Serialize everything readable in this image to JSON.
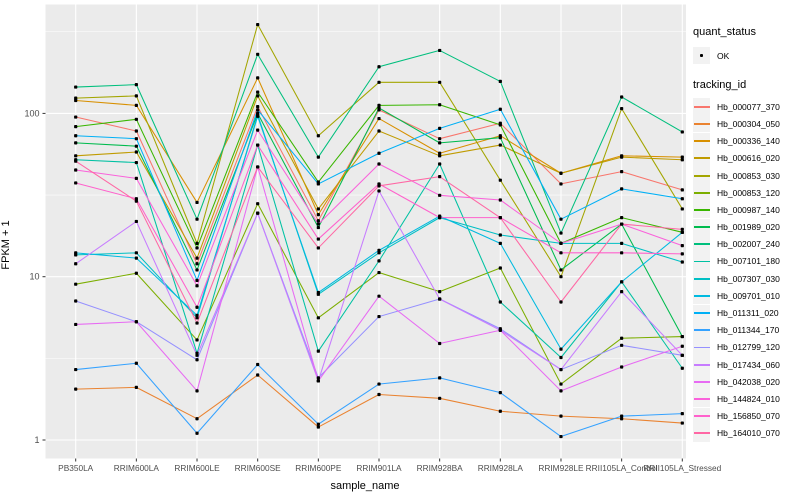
{
  "chart_data": {
    "type": "line",
    "title": "",
    "xlabel": "sample_name",
    "ylabel": "FPKM + 1",
    "yscale": "log10",
    "ytick_labels": [
      "100",
      "10",
      "1"
    ],
    "yticks": [
      100,
      10,
      1
    ],
    "yminor": [
      316.23,
      31.623,
      3.1623
    ],
    "ylim": [
      1,
      400
    ],
    "grid": "white-on-gray",
    "panel_bg": "#EBEBEB",
    "point_color": "#000000",
    "legend_position": "right",
    "categories": [
      "PB350LA",
      "RRIM600LA",
      "RRIM600LE",
      "RRIM600SE",
      "RRIM600PE",
      "RRIM901LA",
      "RRIM928BA",
      "RRIM928LA",
      "RRIM928LE",
      "RRII105LA_Control",
      "RRII105LA_Stressed"
    ],
    "series": [
      {
        "name": "Hb_000077_370",
        "color": "#F8766D",
        "values": [
          95,
          78,
          12,
          110,
          22,
          105,
          70,
          87,
          37,
          44,
          34
        ]
      },
      {
        "name": "Hb_000304_050",
        "color": "#EA8331",
        "values": [
          2.05,
          2.1,
          1.35,
          2.5,
          1.2,
          1.9,
          1.8,
          1.5,
          1.4,
          1.35,
          1.27
        ]
      },
      {
        "name": "Hb_000336_140",
        "color": "#D89000",
        "values": [
          120,
          112,
          28.5,
          165,
          24,
          93,
          57,
          73,
          43,
          55,
          54
        ]
      },
      {
        "name": "Hb_000616_020",
        "color": "#C09B00",
        "values": [
          55,
          58,
          13,
          128,
          26,
          78,
          55,
          64,
          43,
          54,
          52
        ]
      },
      {
        "name": "Hb_000853_030",
        "color": "#A3A500",
        "values": [
          124,
          128,
          16,
          350,
          73,
          155,
          155,
          39,
          10,
          107,
          26
        ]
      },
      {
        "name": "Hb_000853_120",
        "color": "#7CAE00",
        "values": [
          9,
          10.5,
          4.1,
          28,
          5.6,
          10.6,
          8.1,
          11.3,
          2.2,
          4.2,
          4.3
        ]
      },
      {
        "name": "Hb_000987_140",
        "color": "#39B600",
        "values": [
          83,
          92,
          15,
          135,
          38,
          112,
          113,
          85,
          16,
          23,
          18.7
        ]
      },
      {
        "name": "Hb_001989_020",
        "color": "#00BB4E",
        "values": [
          66,
          63,
          11,
          100,
          20,
          108,
          66,
          71,
          11,
          21,
          4.3
        ]
      },
      {
        "name": "Hb_002007_240",
        "color": "#00BF7D",
        "values": [
          145,
          150,
          22.5,
          230,
          54,
          193,
          243,
          157,
          18.5,
          126,
          77
        ]
      },
      {
        "name": "Hb_007101_180",
        "color": "#00C1A3",
        "values": [
          52,
          50,
          3.4,
          64,
          3.5,
          12.5,
          49,
          7,
          3.2,
          9.3,
          2.75
        ]
      },
      {
        "name": "Hb_007307_030",
        "color": "#00BFC4",
        "values": [
          13.6,
          14,
          5.6,
          98,
          7.8,
          14,
          23,
          18,
          16,
          16,
          12.3
        ]
      },
      {
        "name": "Hb_009701_010",
        "color": "#00BAE0",
        "values": [
          14,
          13,
          5.8,
          96,
          8,
          14.5,
          23.5,
          16,
          3.6,
          9.3,
          18.7
        ]
      },
      {
        "name": "Hb_011311_020",
        "color": "#00B0F6",
        "values": [
          73,
          70,
          9.5,
          105,
          37,
          57,
          81,
          106,
          22.5,
          34.5,
          30
        ]
      },
      {
        "name": "Hb_011344_170",
        "color": "#35A2FF",
        "values": [
          2.7,
          2.95,
          1.1,
          2.9,
          1.25,
          2.2,
          2.4,
          1.95,
          1.05,
          1.4,
          1.45
        ]
      },
      {
        "name": "Hb_012799_120",
        "color": "#9590FF",
        "values": [
          7.1,
          5.3,
          3.1,
          24.5,
          2.4,
          5.7,
          7.3,
          4.8,
          2.7,
          3.8,
          3.3
        ]
      },
      {
        "name": "Hb_017434_060",
        "color": "#C77CFF",
        "values": [
          12,
          21.8,
          3.3,
          24.5,
          2.3,
          33.5,
          7.3,
          4.7,
          2.7,
          8.1,
          3.3
        ]
      },
      {
        "name": "Hb_042038_020",
        "color": "#E76BF3",
        "values": [
          5.1,
          5.3,
          2.0,
          47,
          2.3,
          7.6,
          3.9,
          4.7,
          2.0,
          2.8,
          3.75
        ]
      },
      {
        "name": "Hb_144824_010",
        "color": "#FA62DB",
        "values": [
          45,
          40,
          8.8,
          79,
          21,
          49,
          31.5,
          29.5,
          16,
          21,
          15.5
        ]
      },
      {
        "name": "Hb_156850_070",
        "color": "#FF61CC",
        "values": [
          37.5,
          30,
          6.5,
          64,
          17,
          37,
          23,
          23,
          14,
          14,
          13.8
        ]
      },
      {
        "name": "Hb_164010_070",
        "color": "#FF67A4",
        "values": [
          51,
          29,
          5.2,
          47,
          15,
          36,
          41,
          23,
          7,
          21,
          19.5
        ]
      }
    ]
  },
  "legend": {
    "quant_status": {
      "title": "quant_status",
      "items": [
        {
          "label": "OK"
        }
      ]
    },
    "tracking_id": {
      "title": "tracking_id"
    }
  }
}
